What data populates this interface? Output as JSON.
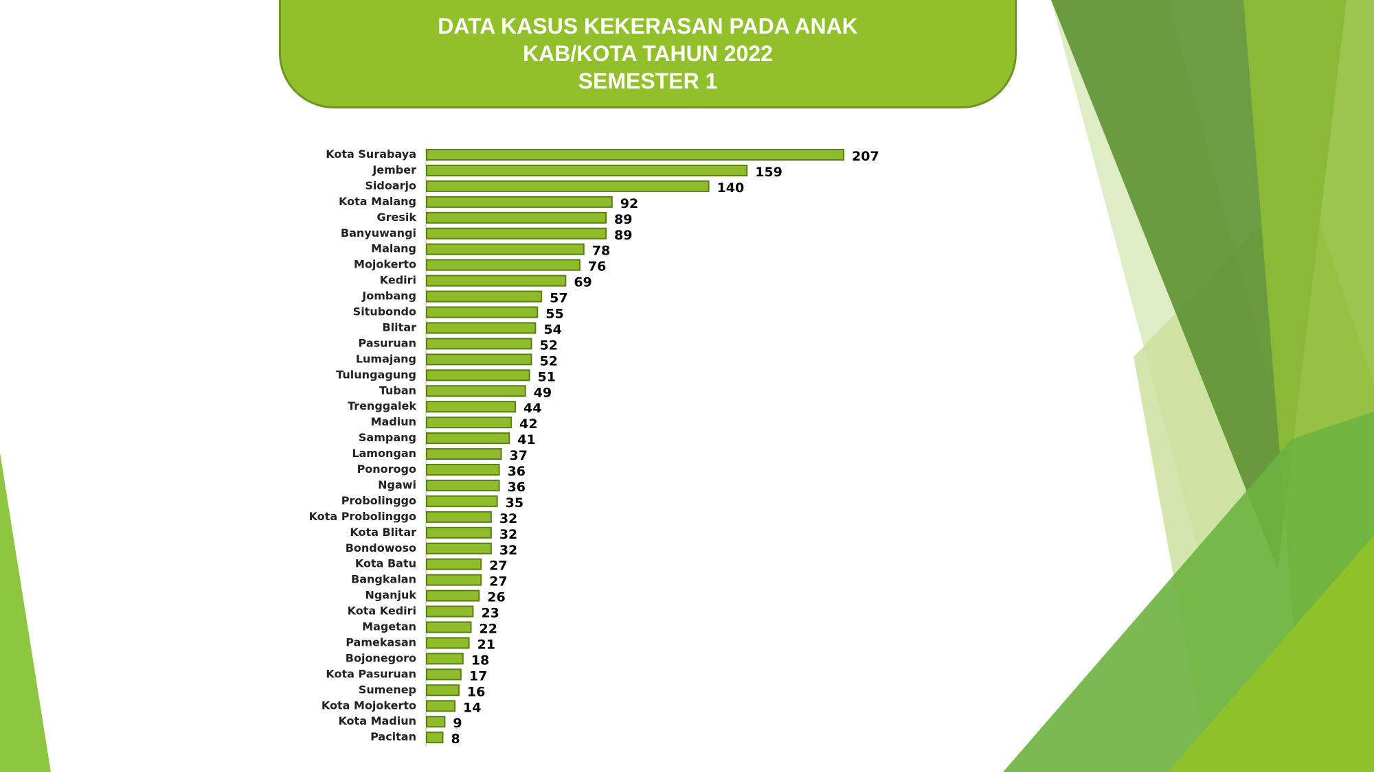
{
  "title": {
    "line1": "DATA KASUS KEKERASAN PADA ANAK",
    "line2": "KAB/KOTA TAHUN 2022",
    "line3": "SEMESTER 1"
  },
  "colors": {
    "bar_fill": "#8fbc2b",
    "bar_stroke": "#5a7f14",
    "title_fill": "#92c02a",
    "accent_dark": "#5e9236",
    "accent_light": "#c7e08a"
  },
  "chart_data": {
    "type": "bar",
    "orientation": "horizontal",
    "title": "DATA KASUS KEKERASAN PADA ANAK KAB/KOTA TAHUN 2022 SEMESTER 1",
    "categories": [
      "Kota Surabaya",
      "Jember",
      "Sidoarjo",
      "Kota Malang",
      "Gresik",
      "Banyuwangi",
      "Malang",
      "Mojokerto",
      "Kediri",
      "Jombang",
      "Situbondo",
      "Blitar",
      "Pasuruan",
      "Lumajang",
      "Tulungagung",
      "Tuban",
      "Trenggalek",
      "Madiun",
      "Sampang",
      "Lamongan",
      "Ponorogo",
      "Ngawi",
      "Probolinggo",
      "Kota Probolinggo",
      "Kota Blitar",
      "Bondowoso",
      "Kota Batu",
      "Bangkalan",
      "Nganjuk",
      "Kota Kediri",
      "Magetan",
      "Pamekasan",
      "Bojonegoro",
      "Kota Pasuruan",
      "Sumenep",
      "Kota Mojokerto",
      "Kota Madiun",
      "Pacitan"
    ],
    "values": [
      207,
      159,
      140,
      92,
      89,
      89,
      78,
      76,
      69,
      57,
      55,
      54,
      52,
      52,
      51,
      49,
      44,
      42,
      41,
      37,
      36,
      36,
      35,
      32,
      32,
      32,
      27,
      27,
      26,
      23,
      22,
      21,
      18,
      17,
      16,
      14,
      9,
      8
    ],
    "xlim": [
      0,
      207
    ],
    "grid": false,
    "legend": "none",
    "data_labels": true
  }
}
